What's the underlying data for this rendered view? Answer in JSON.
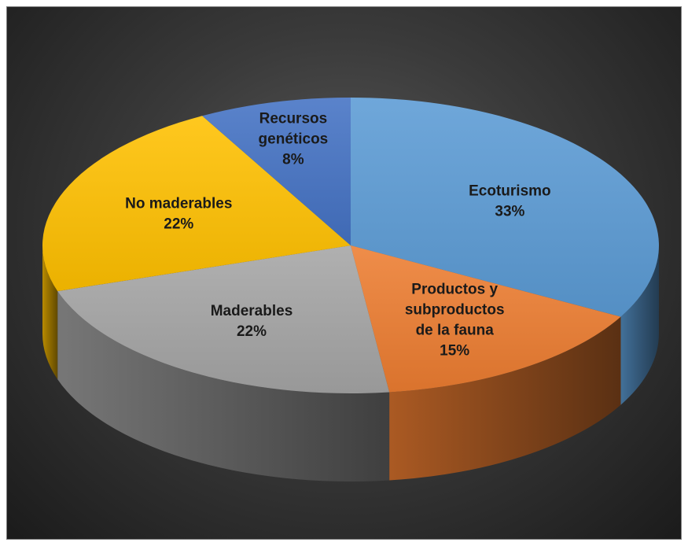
{
  "chart_data": {
    "type": "pie",
    "style": "3d-pie",
    "title": "",
    "slices": [
      {
        "category_lines": [
          "Ecoturismo"
        ],
        "value": 33,
        "value_label": "33%",
        "color": "#5b9bd5"
      },
      {
        "category_lines": [
          "Productos y",
          "subproductos",
          "de la fauna"
        ],
        "value": 15,
        "value_label": "15%",
        "color": "#ed7d31"
      },
      {
        "category_lines": [
          "Maderables"
        ],
        "value": 22,
        "value_label": "22%",
        "color": "#a5a5a5"
      },
      {
        "category_lines": [
          "No maderables"
        ],
        "value": 22,
        "value_label": "22%",
        "color": "#ffc000"
      },
      {
        "category_lines": [
          "Recursos",
          "genéticos"
        ],
        "value": 8,
        "value_label": "8%",
        "color": "#4472c4"
      }
    ],
    "legend": "none",
    "background": "#3a3a3a"
  }
}
